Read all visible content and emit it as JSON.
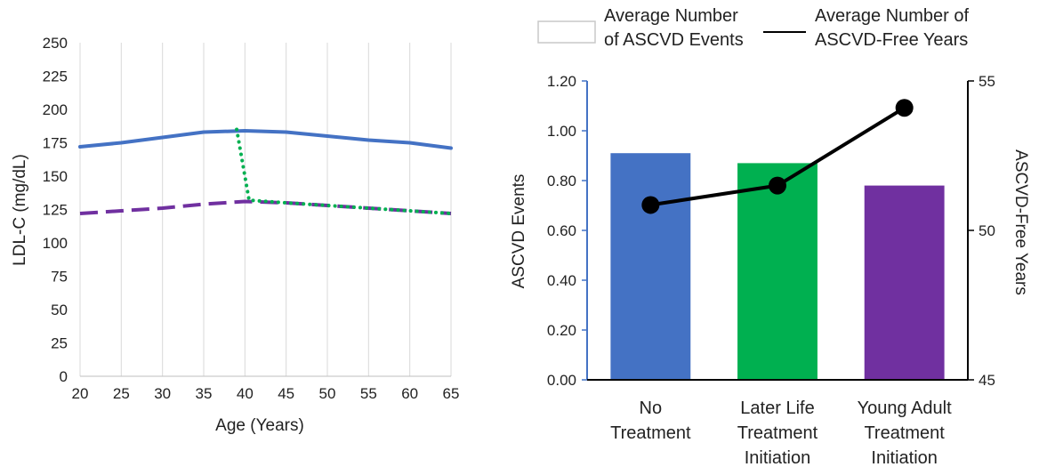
{
  "chart_data": [
    {
      "type": "line",
      "xlabel": "Age (Years)",
      "ylabel": "LDL-C (mg/dL)",
      "xlim": [
        20,
        65
      ],
      "ylim": [
        0,
        250
      ],
      "xticks": [
        "20",
        "25",
        "30",
        "35",
        "40",
        "45",
        "50",
        "55",
        "60",
        "65"
      ],
      "yticks": [
        "0",
        "25",
        "50",
        "75",
        "100",
        "125",
        "150",
        "175",
        "200",
        "225",
        "250"
      ],
      "grid": "vertical",
      "series": [
        {
          "color": "#4472C4",
          "style": "solid",
          "x": [
            20,
            25,
            30,
            35,
            40,
            45,
            50,
            55,
            60,
            65
          ],
          "y": [
            172,
            175,
            179,
            183,
            184,
            183,
            180,
            177,
            175,
            171
          ]
        },
        {
          "color": "#7030A0",
          "style": "dashed",
          "x": [
            20,
            25,
            30,
            35,
            40,
            45,
            50,
            55,
            60,
            65
          ],
          "y": [
            122,
            124,
            126,
            129,
            131,
            130,
            128,
            126,
            124,
            122
          ]
        },
        {
          "color": "#00B050",
          "style": "dotted",
          "x": [
            39,
            40.5,
            45,
            50,
            55,
            60,
            65
          ],
          "y": [
            185,
            132,
            130,
            128,
            126,
            124,
            122
          ]
        }
      ]
    },
    {
      "type": "bar",
      "categories": [
        "No Treatment",
        "Later Life Treatment Initiation",
        "Young Adult Treatment Initiation"
      ],
      "category_lines": [
        [
          "No",
          "Treatment"
        ],
        [
          "Later Life",
          "Treatment",
          "Initiation"
        ],
        [
          "Young Adult",
          "Treatment",
          "Initiation"
        ]
      ],
      "bar_colors": [
        "#4472C4",
        "#00B050",
        "#7030A0"
      ],
      "ylabel": "ASCVD Events",
      "y2label": "ASCVD-Free Years",
      "ylim": [
        0,
        1.2
      ],
      "y2lim": [
        45,
        55
      ],
      "yticks": [
        "0.00",
        "0.20",
        "0.40",
        "0.60",
        "0.80",
        "1.00",
        "1.20"
      ],
      "y2ticks": [
        "45",
        "50",
        "55"
      ],
      "legend": {
        "placement": "top",
        "items": [
          {
            "kind": "box",
            "lines": [
              "Average Number",
              "of ASCVD Events"
            ]
          },
          {
            "kind": "line",
            "lines": [
              "Average Number of",
              "ASCVD-Free Years"
            ]
          }
        ]
      },
      "series": [
        {
          "axis": "left",
          "mark": "bar",
          "values": [
            0.91,
            0.87,
            0.78
          ]
        },
        {
          "axis": "right",
          "mark": "line",
          "color": "#000000",
          "values": [
            50.85,
            51.5,
            54.1
          ]
        }
      ]
    }
  ]
}
